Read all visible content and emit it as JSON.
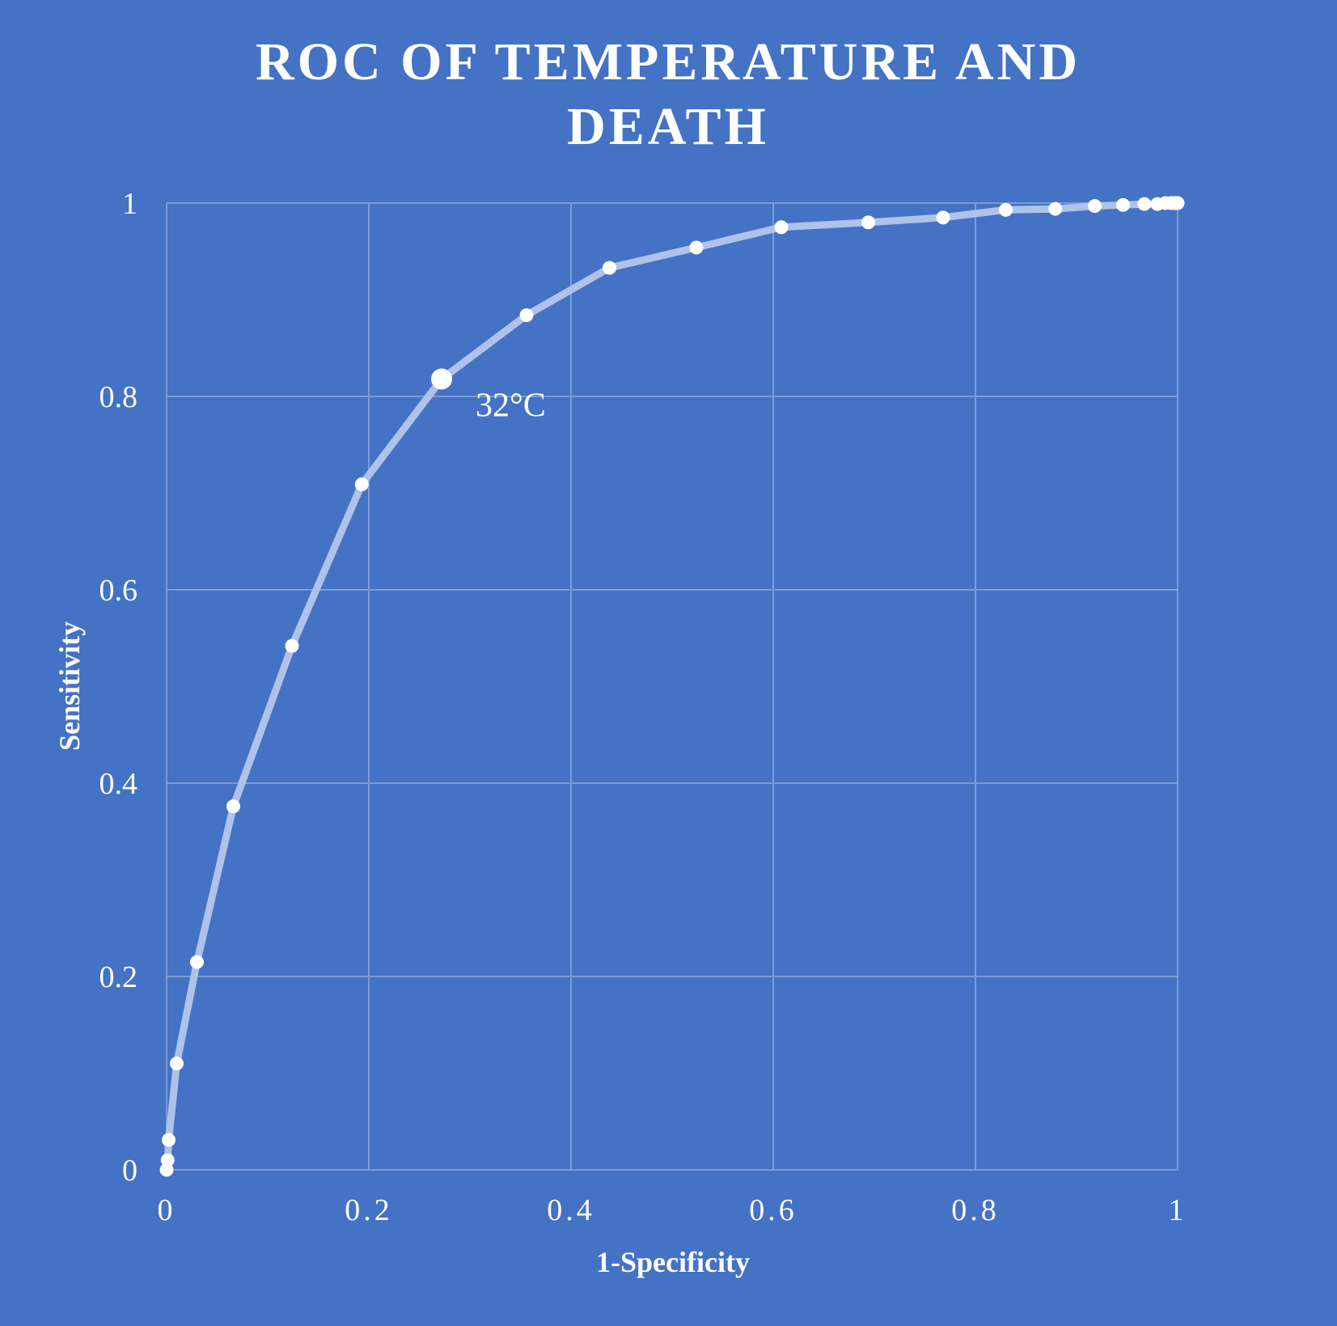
{
  "chart_data": {
    "type": "line",
    "title_lines": [
      "ROC OF TEMPERATURE AND",
      "DEATH"
    ],
    "xlabel": "1-Specificity",
    "ylabel": "Sensitivity",
    "xlim": [
      0,
      1
    ],
    "ylim": [
      0,
      1
    ],
    "xticks": [
      0,
      0.2,
      0.4,
      0.6,
      0.8,
      1
    ],
    "xtick_labels": [
      "0",
      "0.2",
      "0.4",
      "0.6",
      "0.8",
      "1"
    ],
    "yticks": [
      0,
      0.2,
      0.4,
      0.6,
      0.8,
      1
    ],
    "ytick_labels": [
      "0",
      "0.2",
      "0.4",
      "0.6",
      "0.8",
      "1"
    ],
    "grid": true,
    "legend": "none",
    "colors": {
      "background": "#4472C4",
      "line": "#AFC2E9",
      "marker": "#FFFFFF",
      "grid": "#7C9BD6",
      "text": "#FFFFFF"
    },
    "series": [
      {
        "x": [
          0.0,
          0.001,
          0.002,
          0.01,
          0.03,
          0.066,
          0.124,
          0.193,
          0.272,
          0.356,
          0.438,
          0.524,
          0.608,
          0.694,
          0.768,
          0.83,
          0.879,
          0.918,
          0.946,
          0.967,
          0.98,
          0.988,
          0.993,
          0.996,
          0.998,
          1.0
        ],
        "y": [
          0.0,
          0.01,
          0.031,
          0.11,
          0.215,
          0.376,
          0.542,
          0.709,
          0.818,
          0.884,
          0.933,
          0.954,
          0.975,
          0.98,
          0.985,
          0.993,
          0.994,
          0.997,
          0.998,
          0.999,
          0.999,
          1.0,
          1.0,
          1.0,
          1.0,
          1.0
        ]
      }
    ],
    "annotations": [
      {
        "text": "32°C",
        "x": 0.272,
        "y": 0.818
      }
    ]
  }
}
